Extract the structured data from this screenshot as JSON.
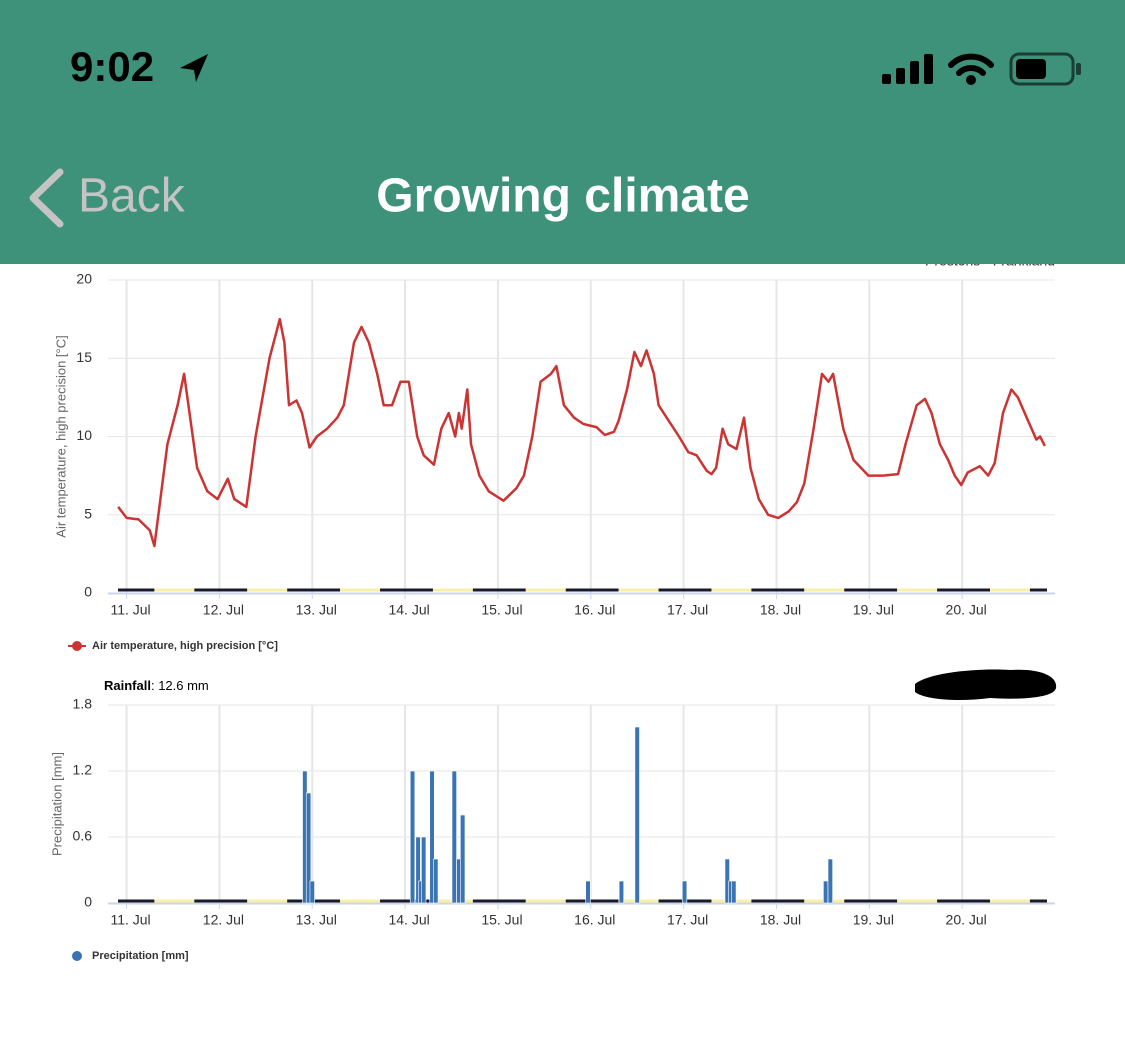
{
  "status_bar": {
    "time": "9:02"
  },
  "nav": {
    "back": "Back",
    "title": "Growing climate"
  },
  "station": "Prestons - Frankland",
  "chart_data": [
    {
      "type": "line",
      "y_label": "Air temperature, high precision [°C]",
      "series": [
        {
          "name": "Air temperature, high precision [°C]",
          "color": "#cc3333",
          "x": [
            10.91,
            11.0,
            11.13,
            11.25,
            11.3,
            11.44,
            11.55,
            11.62,
            11.76,
            11.87,
            11.98,
            12.09,
            12.16,
            12.29,
            12.39,
            12.54,
            12.65,
            12.7,
            12.75,
            12.83,
            12.89,
            12.97,
            13.05,
            13.16,
            13.27,
            13.34,
            13.45,
            13.53,
            13.61,
            13.7,
            13.77,
            13.86,
            13.95,
            14.04,
            14.13,
            14.2,
            14.31,
            14.39,
            14.47,
            14.54,
            14.58,
            14.61,
            14.67,
            14.71,
            14.8,
            14.9,
            15.06,
            15.2,
            15.28,
            15.37,
            15.46,
            15.57,
            15.63,
            15.71,
            15.82,
            15.92,
            16.06,
            16.15,
            16.25,
            16.3,
            16.39,
            16.47,
            16.54,
            16.6,
            16.68,
            16.73,
            16.84,
            16.95,
            17.05,
            17.14,
            17.25,
            17.3,
            17.35,
            17.42,
            17.48,
            17.57,
            17.65,
            17.72,
            17.81,
            17.91,
            18.02,
            18.13,
            18.22,
            18.3,
            18.4,
            18.49,
            18.56,
            18.61,
            18.72,
            18.83,
            18.99,
            19.15,
            19.31,
            19.39,
            19.51,
            19.6,
            19.67,
            19.76,
            19.85,
            19.92,
            19.99,
            20.06,
            20.19,
            20.28,
            20.35,
            20.44,
            20.53,
            20.6,
            20.71,
            20.8,
            20.84,
            20.89
          ],
          "values": [
            5.5,
            4.8,
            4.7,
            4.0,
            3.0,
            9.5,
            12,
            14,
            8,
            6.5,
            6,
            7.3,
            6,
            5.5,
            10,
            15,
            17.5,
            16,
            12,
            12.3,
            11.5,
            9.3,
            10,
            10.5,
            11.2,
            12,
            16,
            17,
            16,
            14,
            12,
            12,
            13.5,
            13.5,
            10,
            8.8,
            8.2,
            10.5,
            11.5,
            10,
            11.5,
            10.5,
            13,
            9.5,
            7.5,
            6.5,
            5.9,
            6.7,
            7.5,
            10,
            13.5,
            14,
            14.5,
            12,
            11.2,
            10.8,
            10.6,
            10.1,
            10.3,
            11,
            13,
            15.4,
            14.5,
            15.5,
            14,
            12,
            11,
            10,
            9,
            8.8,
            7.8,
            7.6,
            8,
            10.5,
            9.5,
            9.2,
            11.2,
            8,
            6,
            5,
            4.8,
            5.2,
            5.8,
            7,
            10.5,
            14,
            13.5,
            14,
            10.5,
            8.5,
            7.5,
            7.5,
            7.6,
            9.5,
            12,
            12.4,
            11.5,
            9.5,
            8.5,
            7.5,
            6.9,
            7.7,
            8.1,
            7.5,
            8.3,
            11.5,
            13,
            12.5,
            11,
            9.8,
            10,
            9.4
          ]
        }
      ],
      "xlim": [
        10.8,
        21.0
      ],
      "xticks": [
        {
          "value": 11,
          "label": "11. Jul"
        },
        {
          "value": 12,
          "label": "12. Jul"
        },
        {
          "value": 13,
          "label": "13. Jul"
        },
        {
          "value": 14,
          "label": "14. Jul"
        },
        {
          "value": 15,
          "label": "15. Jul"
        },
        {
          "value": 16,
          "label": "16. Jul"
        },
        {
          "value": 17,
          "label": "17. Jul"
        },
        {
          "value": 18,
          "label": "18. Jul"
        },
        {
          "value": 19,
          "label": "19. Jul"
        },
        {
          "value": 20,
          "label": "20. Jul"
        }
      ],
      "ylim": [
        0,
        20
      ],
      "yticks": [
        0,
        5,
        10,
        15,
        20
      ],
      "grid": true,
      "legend": "bottom-left"
    },
    {
      "type": "bar",
      "title": "Rainfall",
      "subtitle": ": 12.6 mm",
      "y_label": "Precipitation [mm]",
      "series": [
        {
          "name": "Precipitation [mm]",
          "color": "#3a74b3",
          "x": [
            12.92,
            12.96,
            13.0,
            14.08,
            14.14,
            14.17,
            14.2,
            14.29,
            14.33,
            14.53,
            14.58,
            14.62,
            15.97,
            16.33,
            16.5,
            17.01,
            17.47,
            17.51,
            17.54,
            18.53,
            18.58
          ],
          "values": [
            1.2,
            1.0,
            0.2,
            1.2,
            0.6,
            0.2,
            0.6,
            1.2,
            0.4,
            1.2,
            0.4,
            0.8,
            0.2,
            0.2,
            1.6,
            0.2,
            0.4,
            0.2,
            0.2,
            0.2,
            0.4
          ]
        }
      ],
      "xlim": [
        10.8,
        21.0
      ],
      "xticks": [
        {
          "value": 11,
          "label": "11. Jul"
        },
        {
          "value": 12,
          "label": "12. Jul"
        },
        {
          "value": 13,
          "label": "13. Jul"
        },
        {
          "value": 14,
          "label": "14. Jul"
        },
        {
          "value": 15,
          "label": "15. Jul"
        },
        {
          "value": 16,
          "label": "16. Jul"
        },
        {
          "value": 17,
          "label": "17. Jul"
        },
        {
          "value": 18,
          "label": "18. Jul"
        },
        {
          "value": 19,
          "label": "19. Jul"
        },
        {
          "value": 20,
          "label": "20. Jul"
        }
      ],
      "ylim": [
        0,
        1.8
      ],
      "yticks": [
        0,
        0.6,
        1.2,
        1.8
      ],
      "grid": true,
      "legend": "bottom-left"
    }
  ]
}
